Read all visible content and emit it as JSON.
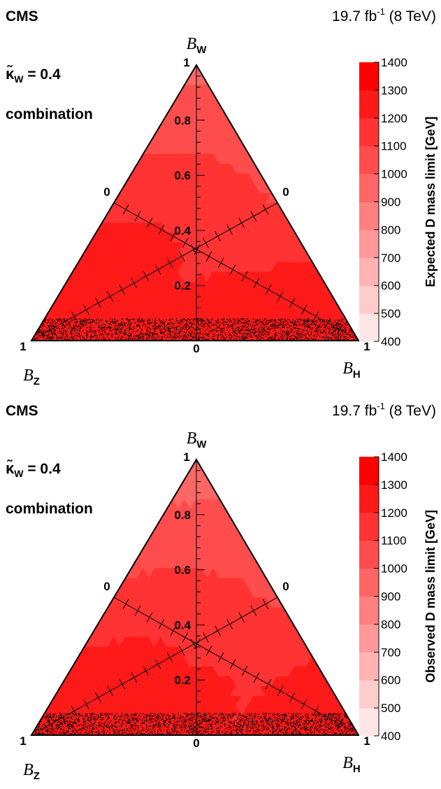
{
  "panels": [
    {
      "experiment": "CMS",
      "lumi": "19.7 fb",
      "lumi_exp": "-1",
      "energy": " (8 TeV)",
      "kappa_symbol": "κ̃",
      "kappa_sub": "W",
      "kappa_value": " = 0.4",
      "channel": "combination",
      "colorbar_title": "Expected D mass limit [GeV]",
      "chart_data": {
        "type": "heatmap",
        "title": "",
        "axes": {
          "top": {
            "symbol": "B",
            "sub": "W"
          },
          "left": {
            "symbol": "B",
            "sub": "Z"
          },
          "right": {
            "symbol": "B",
            "sub": "H"
          }
        },
        "corner_labels": [
          "1",
          "1",
          "1"
        ],
        "zero_labels": [
          "0",
          "0",
          "0"
        ],
        "bw_ticks": [
          "0.2",
          "0.4",
          "0.6",
          "0.8"
        ],
        "z_levels": [
          400,
          500,
          600,
          700,
          800,
          900,
          1000,
          1100,
          1200,
          1300,
          1400
        ],
        "z_ticks": [
          "400",
          "500",
          "600",
          "700",
          "800",
          "900",
          "1000",
          "1100",
          "1200",
          "1300",
          "1400"
        ],
        "zlim": [
          400,
          1400
        ],
        "contours": [
          {
            "level": 1300,
            "points": [
              [
                0,
                0.5
              ],
              [
                0.18,
                0.09
              ],
              [
                0.05,
                0.73
              ],
              [
                0.06,
                0.9
              ]
            ]
          },
          {
            "level": 1200,
            "points": [
              [
                0,
                0.42
              ],
              [
                0.25,
                0.1
              ],
              [
                0.08,
                0.62
              ],
              [
                0.08,
                0.88
              ]
            ]
          },
          {
            "level": 1100,
            "points": [
              [
                0,
                0.35
              ],
              [
                0.33,
                0.1
              ],
              [
                0.12,
                0.5
              ],
              [
                0.1,
                0.85
              ]
            ]
          },
          {
            "level": 1000,
            "points": [
              [
                0,
                0.7
              ],
              [
                0.45,
                0.15
              ],
              [
                0.45,
                0.3
              ],
              [
                0.13,
                0.78
              ]
            ]
          },
          {
            "level": 900,
            "points": [
              [
                0.4,
                0.6
              ],
              [
                0.55,
                0.4
              ],
              [
                0.2,
                0.6
              ],
              [
                0.15,
                0.6
              ]
            ]
          },
          {
            "level": 800,
            "points": [
              [
                0.65,
                0.3
              ],
              [
                0.95,
                0
              ],
              [
                0.55,
                0.4
              ],
              [
                0.2,
                0.7
              ]
            ]
          },
          {
            "level": 700,
            "points": [
              [
                0.82,
                0.15
              ],
              [
                0.99,
                0
              ]
            ]
          }
        ]
      }
    },
    {
      "experiment": "CMS",
      "lumi": "19.7 fb",
      "lumi_exp": "-1",
      "energy": " (8 TeV)",
      "kappa_symbol": "κ̃",
      "kappa_sub": "W",
      "kappa_value": " = 0.4",
      "channel": "combination",
      "colorbar_title": "Observed D mass limit [GeV]",
      "chart_data": {
        "type": "heatmap",
        "title": "",
        "axes": {
          "top": {
            "symbol": "B",
            "sub": "W"
          },
          "left": {
            "symbol": "B",
            "sub": "Z"
          },
          "right": {
            "symbol": "B",
            "sub": "H"
          }
        },
        "corner_labels": [
          "1",
          "1",
          "1"
        ],
        "zero_labels": [
          "0",
          "0",
          "0"
        ],
        "bw_ticks": [
          "0.2",
          "0.4",
          "0.6",
          "0.8"
        ],
        "z_levels": [
          400,
          500,
          600,
          700,
          800,
          900,
          1000,
          1100,
          1200,
          1300,
          1400
        ],
        "z_ticks": [
          "400",
          "500",
          "600",
          "700",
          "800",
          "900",
          "1000",
          "1100",
          "1200",
          "1300",
          "1400"
        ],
        "zlim": [
          400,
          1400
        ],
        "contours": [
          {
            "level": 1300,
            "points": [
              [
                0,
                0.35
              ],
              [
                0.1,
                0.15
              ],
              [
                0.05,
                0.85
              ],
              [
                0.03,
                0.93
              ]
            ]
          },
          {
            "level": 1200,
            "points": [
              [
                0,
                0.28
              ],
              [
                0.25,
                0.12
              ],
              [
                0.08,
                0.75
              ],
              [
                0.05,
                0.9
              ]
            ]
          },
          {
            "level": 1100,
            "points": [
              [
                0,
                0.2
              ],
              [
                0.4,
                0.3
              ],
              [
                0.12,
                0.65
              ],
              [
                0.08,
                0.85
              ]
            ]
          },
          {
            "level": 1000,
            "points": [
              [
                0.25,
                0.75
              ],
              [
                0.6,
                0.35
              ],
              [
                0.3,
                0.5
              ],
              [
                0.15,
                0.6
              ]
            ]
          },
          {
            "level": 900,
            "points": [
              [
                0.7,
                0.25
              ],
              [
                0.95,
                0.02
              ],
              [
                0.3,
                0.6
              ]
            ]
          },
          {
            "level": 800,
            "points": [
              [
                0.85,
                0.1
              ],
              [
                0.99,
                0
              ]
            ]
          }
        ]
      }
    }
  ]
}
